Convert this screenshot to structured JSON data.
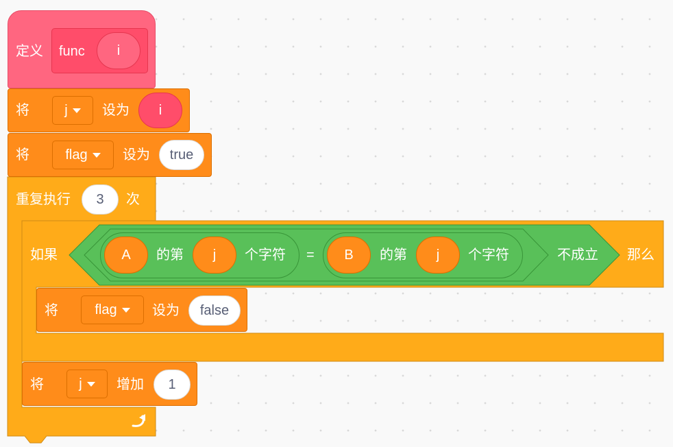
{
  "define": {
    "keyword": "定义",
    "name": "func",
    "param": "i"
  },
  "set_j": {
    "prefix": "将",
    "var": "j",
    "mid": "设为",
    "value": "i"
  },
  "set_flag": {
    "prefix": "将",
    "var": "flag",
    "mid": "设为",
    "value": "true"
  },
  "repeat": {
    "prefix": "重复执行",
    "count": "3",
    "suffix": "次"
  },
  "if_block": {
    "prefix": "如果",
    "then": "那么",
    "not_label": "不成立",
    "equals": "=",
    "left": {
      "string": "A",
      "word1": "的第",
      "index": "j",
      "word2": "个字符"
    },
    "right": {
      "string": "B",
      "word1": "的第",
      "index": "j",
      "word2": "个字符"
    }
  },
  "set_flag_false": {
    "prefix": "将",
    "var": "flag",
    "mid": "设为",
    "value": "false"
  },
  "change_j": {
    "prefix": "将",
    "var": "j",
    "mid": "增加",
    "value": "1"
  },
  "colors": {
    "events": "#ff6680",
    "variables": "#ff8c1a",
    "control": "#ffab19",
    "operators": "#59c059"
  }
}
